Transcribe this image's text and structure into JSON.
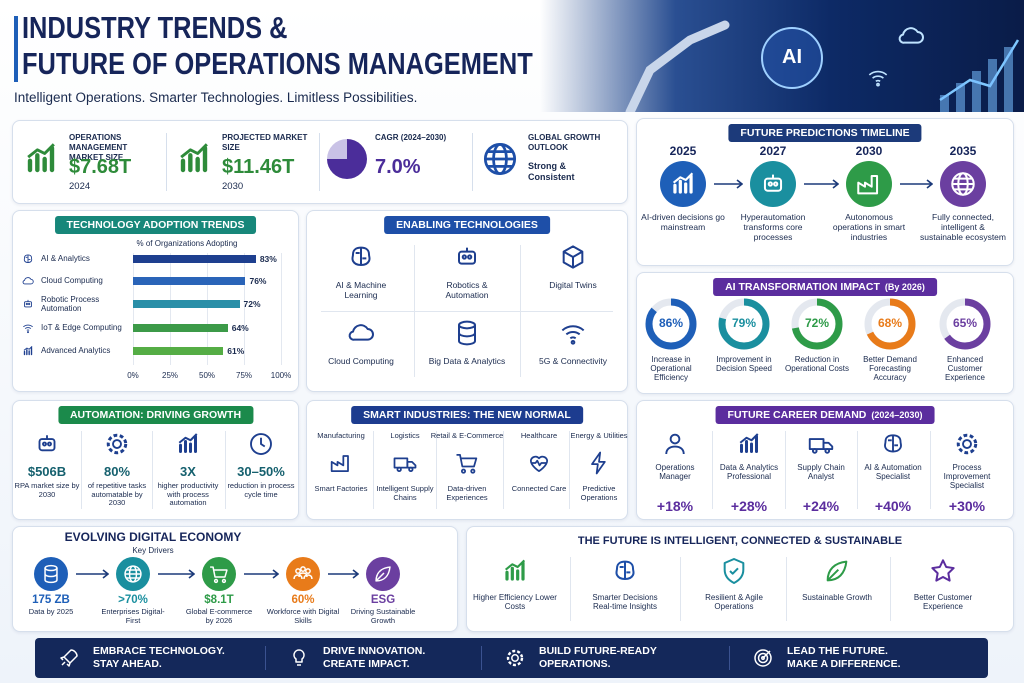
{
  "header": {
    "title_line1": "INDUSTRY TRENDS &",
    "title_line2": "FUTURE OF OPERATIONS MANAGEMENT",
    "subtitle": "Intelligent Operations. Smarter Technologies. Limitless Possibilities.",
    "image_label": "AI"
  },
  "stats": [
    {
      "label": "OPERATIONS MANAGEMENT MARKET SIZE",
      "value": "$7.68T",
      "year": "2024",
      "color": "#2e8b3a"
    },
    {
      "label": "PROJECTED MARKET SIZE",
      "value": "$11.46T",
      "year": "2030",
      "color": "#2e8b3a"
    },
    {
      "label": "CAGR (2024–2030)",
      "value": "7.0%",
      "color": "#4b2d9a"
    },
    {
      "label": "GLOBAL GROWTH OUTLOOK",
      "value": "Strong & Consistent",
      "color": "#1a2a4e"
    }
  ],
  "timeline": {
    "title": "FUTURE PREDICTIONS TIMELINE",
    "items": [
      {
        "year": "2025",
        "text": "AI-driven decisions go mainstream",
        "color": "#1e5fb8"
      },
      {
        "year": "2027",
        "text": "Hyperautomation transforms core processes",
        "color": "#1a8f9f"
      },
      {
        "year": "2030",
        "text": "Autonomous operations in smart industries",
        "color": "#2e9b48"
      },
      {
        "year": "2035",
        "text": "Fully connected, intelligent & sustainable ecosystem",
        "color": "#6b3fa0"
      }
    ]
  },
  "adoption": {
    "title": "TECHNOLOGY ADOPTION TRENDS",
    "subtitle": "% of Organizations Adopting",
    "categories": [
      "AI & Analytics",
      "Cloud Computing",
      "Robotic Process Automation",
      "IoT & Edge Computing",
      "Advanced Analytics"
    ],
    "values": [
      83,
      76,
      72,
      64,
      61
    ],
    "value_labels": [
      "83%",
      "76%",
      "72%",
      "64%",
      "61%"
    ],
    "colors": [
      "#1e3f8f",
      "#2a64b8",
      "#2a8fa8",
      "#3c9a48",
      "#55ad45"
    ],
    "xlim": [
      0,
      100
    ],
    "xticks": [
      {
        "value": 0,
        "label": "0%"
      },
      {
        "value": 25,
        "label": "25%"
      },
      {
        "value": 50,
        "label": "50%"
      },
      {
        "value": 75,
        "label": "75%"
      },
      {
        "value": 100,
        "label": "100%"
      }
    ]
  },
  "enabling": {
    "title": "ENABLING TECHNOLOGIES",
    "items": [
      "AI & Machine Learning",
      "Robotics & Automation",
      "Digital Twins",
      "Cloud Computing",
      "Big Data & Analytics",
      "5G & Connectivity"
    ]
  },
  "ai_impact": {
    "title": "AI TRANSFORMATION IMPACT",
    "subtitle": "(By 2026)",
    "items": [
      {
        "value": 86,
        "label": "86%",
        "text": "Increase in Operational Efficiency",
        "color": "#1e5fb8"
      },
      {
        "value": 79,
        "label": "79%",
        "text": "Improvement in Decision Speed",
        "color": "#1a8f9f"
      },
      {
        "value": 72,
        "label": "72%",
        "text": "Reduction in Operational Costs",
        "color": "#2e9b48"
      },
      {
        "value": 68,
        "label": "68%",
        "text": "Better Demand Forecasting Accuracy",
        "color": "#e87b1a"
      },
      {
        "value": 65,
        "label": "65%",
        "text": "Enhanced Customer Experience",
        "color": "#6b3fa0"
      }
    ]
  },
  "automation": {
    "title": "AUTOMATION: DRIVING GROWTH",
    "items": [
      {
        "value": "$506B",
        "text": "RPA market size by 2030"
      },
      {
        "value": "80%",
        "text": "of repetitive tasks automatable by 2030"
      },
      {
        "value": "3X",
        "text": "higher productivity with process automation"
      },
      {
        "value": "30–50%",
        "text": "reduction in process cycle time"
      }
    ]
  },
  "smart": {
    "title": "SMART INDUSTRIES: THE NEW NORMAL",
    "items": [
      {
        "sector": "Manufacturing",
        "text": "Smart Factories"
      },
      {
        "sector": "Logistics",
        "text": "Intelligent Supply Chains"
      },
      {
        "sector": "Retail & E-Commerce",
        "text": "Data-driven Experiences"
      },
      {
        "sector": "Healthcare",
        "text": "Connected Care"
      },
      {
        "sector": "Energy & Utilities",
        "text": "Predictive Operations"
      }
    ]
  },
  "careers": {
    "title": "FUTURE CAREER DEMAND",
    "subtitle": "(2024–2030)",
    "items": [
      {
        "role": "Operations Manager",
        "growth": "+18%"
      },
      {
        "role": "Data & Analytics Professional",
        "growth": "+28%"
      },
      {
        "role": "Supply Chain Analyst",
        "growth": "+24%"
      },
      {
        "role": "AI & Automation Specialist",
        "growth": "+40%"
      },
      {
        "role": "Process Improvement Specialist",
        "growth": "+30%"
      }
    ]
  },
  "economy": {
    "title": "EVOLVING DIGITAL ECONOMY",
    "subtitle": "Key Drivers",
    "items": [
      {
        "value": "175 ZB",
        "text": "Data by 2025",
        "color": "#1e5fb8"
      },
      {
        "value": ">70%",
        "text": "Enterprises Digital-First",
        "color": "#1a8f9f"
      },
      {
        "value": "$8.1T",
        "text": "Global E-commerce by 2026",
        "color": "#2e9b48"
      },
      {
        "value": "60%",
        "text": "Workforce with Digital Skills",
        "color": "#e87b1a"
      },
      {
        "value": "ESG",
        "text": "Driving Sustainable Growth",
        "color": "#6b3fa0"
      }
    ]
  },
  "future": {
    "title": "THE FUTURE IS INTELLIGENT, CONNECTED & SUSTAINABLE",
    "items": [
      "Higher Efficiency Lower Costs",
      "Smarter Decisions Real-time Insights",
      "Resilient & Agile Operations",
      "Sustainable Growth",
      "Better Customer Experience"
    ]
  },
  "footer": {
    "items": [
      {
        "line1": "EMBRACE TECHNOLOGY.",
        "line2": "STAY AHEAD."
      },
      {
        "line1": "DRIVE INNOVATION.",
        "line2": "CREATE IMPACT."
      },
      {
        "line1": "BUILD FUTURE-READY",
        "line2": "OPERATIONS."
      },
      {
        "line1": "LEAD THE FUTURE.",
        "line2": "MAKE A DIFFERENCE."
      }
    ]
  }
}
